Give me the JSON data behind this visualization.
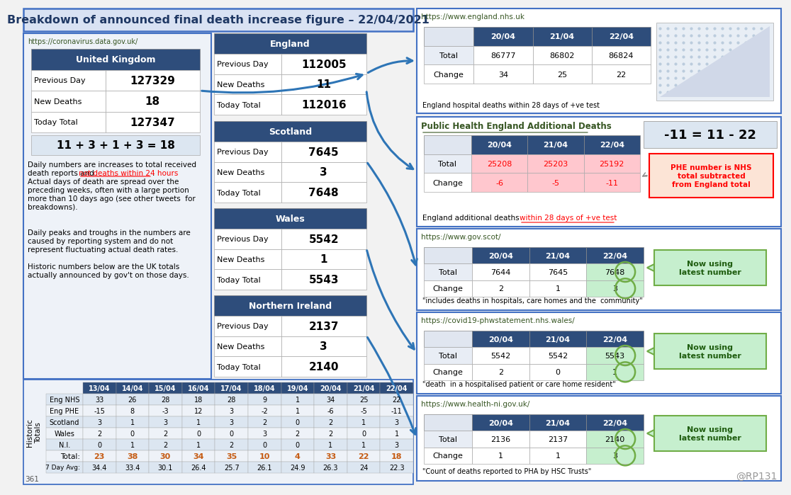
{
  "title": "Breakdown of announced final death increase figure – 22/04/2021",
  "title_bg": "#d9e2f3",
  "title_color": "#1f3864",
  "header_bg": "#2e4d7b",
  "bg_color": "#f2f2f2",
  "uk_prev_day": "127329",
  "uk_new_deaths": "18",
  "uk_today_total": "127347",
  "uk_equation": "11 + 3 + 1 + 3 = 18",
  "eng_prev_day": "112005",
  "eng_new_deaths": "11",
  "eng_today_total": "112016",
  "sco_prev_day": "7645",
  "sco_new_deaths": "3",
  "sco_today_total": "7648",
  "wal_prev_day": "5542",
  "wal_new_deaths": "1",
  "wal_today_total": "5543",
  "ni_prev_day": "2137",
  "ni_new_deaths": "3",
  "ni_today_total": "2140",
  "gov_url": "https://coronavirus.data.gov.uk/",
  "nhs_url": "https://www.england.nhs.uk",
  "phe_title": "Public Health England Additional Deaths",
  "scot_url": "https://www.gov.scot/",
  "wales_url": "https://covid19-phwstatement.nhs.wales/",
  "ni_url": "https://www.health-ni.gov.uk/",
  "nhs_total_2004": "86777",
  "nhs_total_2104": "86802",
  "nhs_total_2204": "86824",
  "nhs_change_2004": "34",
  "nhs_change_2104": "25",
  "nhs_change_2204": "22",
  "phe_total_2004": "25208",
  "phe_total_2104": "25203",
  "phe_total_2204": "25192",
  "phe_change_2004": "-6",
  "phe_change_2104": "-5",
  "phe_change_2204": "-11",
  "phe_note": "-11 = 11 - 22",
  "phe_annotation": "PHE number is NHS\ntotal subtracted\nfrom England total",
  "scot_total_2004": "7644",
  "scot_total_2104": "7645",
  "scot_total_2204": "7648",
  "scot_change_2004": "2",
  "scot_change_2104": "1",
  "scot_change_2204": "3",
  "wales_total_2004": "5542",
  "wales_total_2104": "5542",
  "wales_total_2204": "5543",
  "wales_change_2004": "2",
  "wales_change_2104": "0",
  "wales_change_2204": "1",
  "ni_total_2004": "2136",
  "ni_total_2104": "2137",
  "ni_total_2204": "2140",
  "ni_change_2004": "1",
  "ni_change_2104": "1",
  "ni_change_2204": "3",
  "historic_cols": [
    "13/04",
    "14/04",
    "15/04",
    "16/04",
    "17/04",
    "18/04",
    "19/04",
    "20/04",
    "21/04",
    "22/04"
  ],
  "historic_rows": {
    "Eng NHS": [
      33,
      26,
      28,
      18,
      28,
      9,
      1,
      34,
      25,
      22
    ],
    "Eng PHE": [
      -15,
      8,
      -3,
      12,
      3,
      -2,
      1,
      -6,
      -5,
      -11
    ],
    "Scotland": [
      3,
      1,
      3,
      1,
      3,
      2,
      0,
      2,
      1,
      3
    ],
    "Wales": [
      2,
      0,
      2,
      0,
      0,
      3,
      2,
      2,
      0,
      1
    ],
    "N.I.": [
      0,
      1,
      2,
      1,
      2,
      0,
      0,
      1,
      1,
      3
    ]
  },
  "historic_totals": [
    23,
    38,
    30,
    34,
    35,
    10,
    4,
    33,
    22,
    18
  ],
  "historic_7day": [
    "34.4",
    "33.4",
    "30.1",
    "26.4",
    "25.7",
    "26.1",
    "24.9",
    "26.3",
    "24",
    "22.3"
  ],
  "note1a": "Daily numbers are increases to total received",
  "note1b": "death reports and ",
  "note1c": "not deaths within 24 hours",
  "note1d": ".",
  "note1e": "Actual days of death are spread over the",
  "note1f": "preceding weeks, often with a large portion",
  "note1g": "more than 10 days ago (see other tweets  for",
  "note1h": "breakdowns).",
  "note2a": "Daily peaks and troughs in the numbers are",
  "note2b": "caused by reporting system and do not",
  "note2c": "represent fluctuating actual death rates.",
  "note3a": "Historic numbers below are the UK totals",
  "note3b": "actually announced by gov't on those days.",
  "nhs_note": "England hospital deaths within 28 days of +ve test",
  "scot_note": "\"includes deaths in hospitals, care homes and the  community\"",
  "wales_note": "\"death  in a hospitalised patient or care home resident\"",
  "ni_note": "\"Count of deaths reported to PHA by HSC Trusts\"",
  "watermark": "@RP131",
  "page_num": "361",
  "arrow_color": "#2e75b6"
}
